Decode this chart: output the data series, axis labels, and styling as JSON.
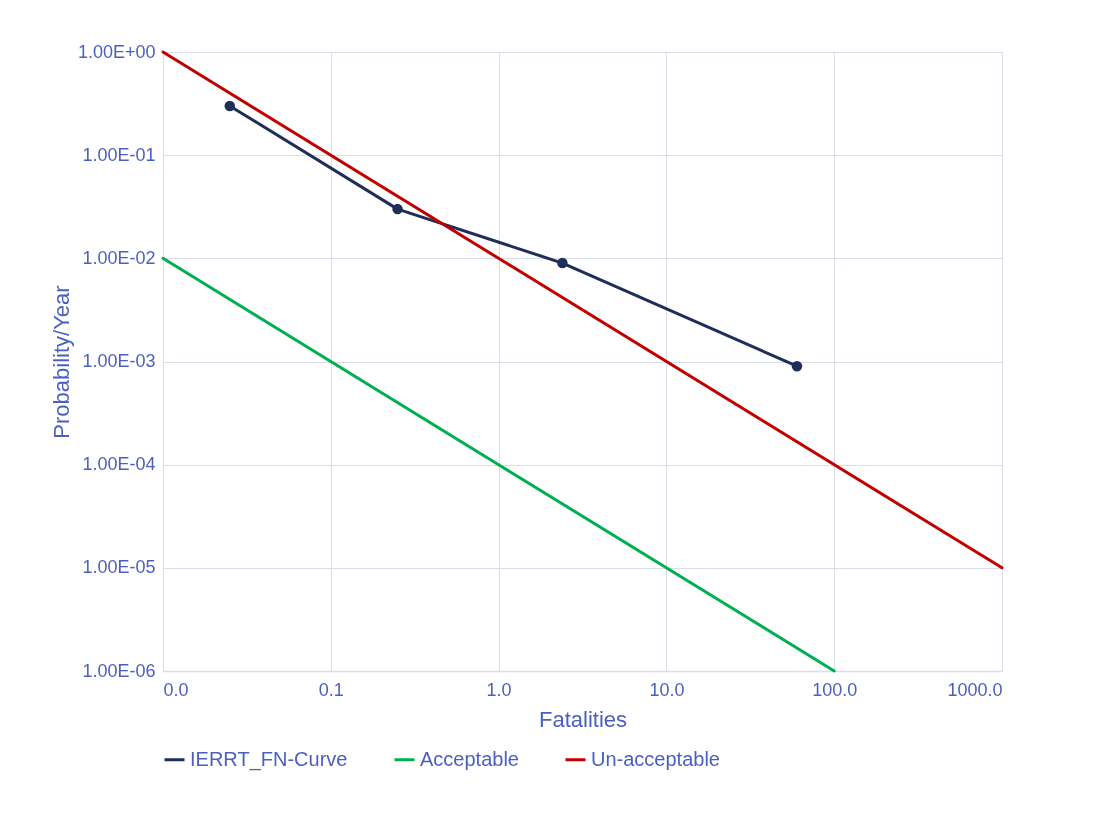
{
  "chart_data": {
    "type": "line",
    "xlabel": "Fatalities",
    "ylabel": "Probability/Year",
    "log": "xy",
    "grid": true,
    "legend": "bottom",
    "xlim": [
      0.01,
      1000
    ],
    "ylim": [
      1e-06,
      1
    ],
    "xticks": [
      {
        "value": 0.01,
        "label": "0.0"
      },
      {
        "value": 0.1,
        "label": "0.1"
      },
      {
        "value": 1,
        "label": "1.0"
      },
      {
        "value": 10,
        "label": "10.0"
      },
      {
        "value": 100,
        "label": "100.0"
      },
      {
        "value": 1000,
        "label": "1000.0"
      }
    ],
    "yticks": [
      {
        "value": 1e-06,
        "label": "1.00E-06"
      },
      {
        "value": 1e-05,
        "label": "1.00E-05"
      },
      {
        "value": 0.0001,
        "label": "1.00E-04"
      },
      {
        "value": 0.001,
        "label": "1.00E-03"
      },
      {
        "value": 0.01,
        "label": "1.00E-02"
      },
      {
        "value": 0.1,
        "label": "1.00E-01"
      },
      {
        "value": 1,
        "label": "1.00E+00"
      }
    ],
    "series": [
      {
        "name": "IERRT_FN-Curve",
        "color": "#1f2d5a",
        "marker": "circle",
        "x": [
          0.025,
          0.25,
          2.4,
          60
        ],
        "values": [
          0.3,
          0.03,
          0.009,
          0.0009
        ]
      },
      {
        "name": "Acceptable",
        "color": "#00b050",
        "marker": "none",
        "x": [
          0.01,
          100
        ],
        "values": [
          0.01,
          1e-06
        ]
      },
      {
        "name": "Un-acceptable",
        "color": "#c00000",
        "marker": "none",
        "x": [
          0.01,
          1000
        ],
        "values": [
          1,
          1e-05
        ]
      }
    ]
  }
}
